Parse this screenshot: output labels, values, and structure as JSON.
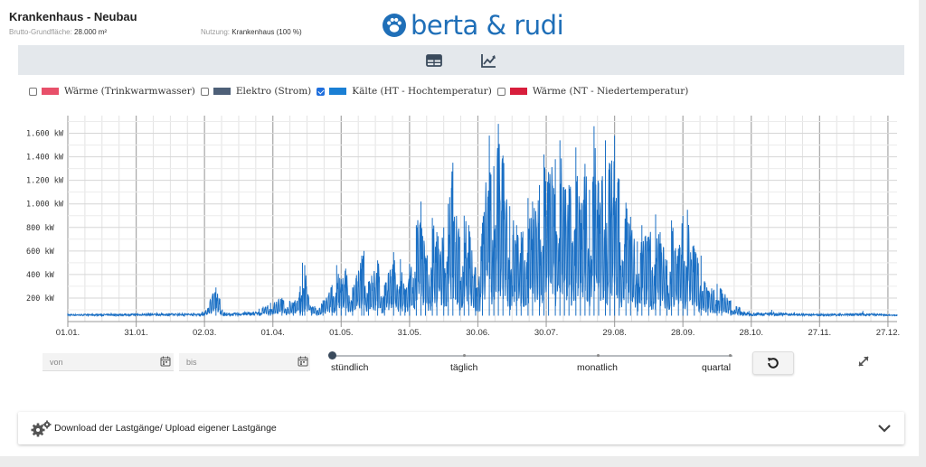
{
  "header": {
    "title": "Krankenhaus - Neubau",
    "area_label": "Brutto-Grundfläche:",
    "area_value": "28.000 m²",
    "usage_label": "Nutzung:",
    "usage_value": "Krankenhaus (100 %)",
    "logo_text": "berta & rudi",
    "logo_icon": "paw-icon"
  },
  "toolbar": {
    "buttons": [
      {
        "name": "table-view",
        "icon": "table-icon"
      },
      {
        "name": "chart-view",
        "icon": "line-chart-icon"
      }
    ]
  },
  "legend": [
    {
      "label": "Wärme (Trinkwarmwasser)",
      "color": "#e8506a",
      "checked": false
    },
    {
      "label": "Elektro (Strom)",
      "color": "#4e6078",
      "checked": false
    },
    {
      "label": "Kälte (HT - Hochtemperatur)",
      "color": "#1a7fd4",
      "checked": true
    },
    {
      "label": "Wärme (NT - Niedertemperatur)",
      "color": "#d81e3c",
      "checked": false
    }
  ],
  "chart_data": {
    "type": "line",
    "series": [
      {
        "name": "Kälte (HT - Hochtemperatur)",
        "color": "#1a6fc4"
      }
    ],
    "y_ticks": [
      {
        "value": 200,
        "label": "200 kW"
      },
      {
        "value": 400,
        "label": "400 kW"
      },
      {
        "value": 600,
        "label": "600 kW"
      },
      {
        "value": 800,
        "label": "800 kW"
      },
      {
        "value": 1000,
        "label": "1.000 kW"
      },
      {
        "value": 1200,
        "label": "1.200 kW"
      },
      {
        "value": 1400,
        "label": "1.400 kW"
      },
      {
        "value": 1600,
        "label": "1.600 kW"
      }
    ],
    "ylim": [
      0,
      1750
    ],
    "x_unit": "day_of_year",
    "xlim": [
      1,
      365
    ],
    "x_ticks": [
      {
        "day": 1,
        "label": "01.01."
      },
      {
        "day": 31,
        "label": "31.01."
      },
      {
        "day": 61,
        "label": "02.03."
      },
      {
        "day": 91,
        "label": "01.04."
      },
      {
        "day": 121,
        "label": "01.05."
      },
      {
        "day": 151,
        "label": "31.05."
      },
      {
        "day": 181,
        "label": "30.06."
      },
      {
        "day": 211,
        "label": "30.07."
      },
      {
        "day": 241,
        "label": "29.08."
      },
      {
        "day": 271,
        "label": "28.09."
      },
      {
        "day": 301,
        "label": "28.10."
      },
      {
        "day": 331,
        "label": "27.11."
      },
      {
        "day": 361,
        "label": "27.12."
      }
    ],
    "baseline_kw": 50,
    "daily_peaks": [
      {
        "day": 1,
        "kw": 70
      },
      {
        "day": 20,
        "kw": 75
      },
      {
        "day": 40,
        "kw": 80
      },
      {
        "day": 60,
        "kw": 85
      },
      {
        "day": 66,
        "kw": 290
      },
      {
        "day": 70,
        "kw": 80
      },
      {
        "day": 85,
        "kw": 110
      },
      {
        "day": 90,
        "kw": 160
      },
      {
        "day": 95,
        "kw": 200
      },
      {
        "day": 100,
        "kw": 160
      },
      {
        "day": 103,
        "kw": 300
      },
      {
        "day": 104,
        "kw": 500
      },
      {
        "day": 105,
        "kw": 480
      },
      {
        "day": 108,
        "kw": 120
      },
      {
        "day": 113,
        "kw": 180
      },
      {
        "day": 117,
        "kw": 310
      },
      {
        "day": 119,
        "kw": 480
      },
      {
        "day": 121,
        "kw": 360
      },
      {
        "day": 123,
        "kw": 450
      },
      {
        "day": 126,
        "kw": 290
      },
      {
        "day": 130,
        "kw": 560
      },
      {
        "day": 131,
        "kw": 600
      },
      {
        "day": 133,
        "kw": 340
      },
      {
        "day": 137,
        "kw": 520
      },
      {
        "day": 140,
        "kw": 310
      },
      {
        "day": 144,
        "kw": 590
      },
      {
        "day": 147,
        "kw": 530
      },
      {
        "day": 149,
        "kw": 280
      },
      {
        "day": 151,
        "kw": 490
      },
      {
        "day": 154,
        "kw": 820
      },
      {
        "day": 156,
        "kw": 1020
      },
      {
        "day": 158,
        "kw": 540
      },
      {
        "day": 161,
        "kw": 880
      },
      {
        "day": 163,
        "kw": 760
      },
      {
        "day": 166,
        "kw": 800
      },
      {
        "day": 168,
        "kw": 1000
      },
      {
        "day": 170,
        "kw": 1350
      },
      {
        "day": 173,
        "kw": 720
      },
      {
        "day": 175,
        "kw": 900
      },
      {
        "day": 177,
        "kw": 820
      },
      {
        "day": 180,
        "kw": 460
      },
      {
        "day": 183,
        "kw": 840
      },
      {
        "day": 186,
        "kw": 1580
      },
      {
        "day": 188,
        "kw": 1320
      },
      {
        "day": 190,
        "kw": 1680
      },
      {
        "day": 192,
        "kw": 1410
      },
      {
        "day": 195,
        "kw": 980
      },
      {
        "day": 198,
        "kw": 820
      },
      {
        "day": 200,
        "kw": 760
      },
      {
        "day": 203,
        "kw": 1050
      },
      {
        "day": 205,
        "kw": 1020
      },
      {
        "day": 208,
        "kw": 1160
      },
      {
        "day": 210,
        "kw": 1420
      },
      {
        "day": 212,
        "kw": 1270
      },
      {
        "day": 215,
        "kw": 1380
      },
      {
        "day": 217,
        "kw": 1540
      },
      {
        "day": 219,
        "kw": 1120
      },
      {
        "day": 221,
        "kw": 1160
      },
      {
        "day": 224,
        "kw": 1480
      },
      {
        "day": 226,
        "kw": 950
      },
      {
        "day": 228,
        "kw": 1340
      },
      {
        "day": 230,
        "kw": 1120
      },
      {
        "day": 232,
        "kw": 1660
      },
      {
        "day": 234,
        "kw": 1180
      },
      {
        "day": 237,
        "kw": 1540
      },
      {
        "day": 239,
        "kw": 1340
      },
      {
        "day": 241,
        "kw": 1580
      },
      {
        "day": 243,
        "kw": 1210
      },
      {
        "day": 246,
        "kw": 1010
      },
      {
        "day": 248,
        "kw": 890
      },
      {
        "day": 251,
        "kw": 680
      },
      {
        "day": 253,
        "kw": 820
      },
      {
        "day": 256,
        "kw": 720
      },
      {
        "day": 259,
        "kw": 910
      },
      {
        "day": 261,
        "kw": 760
      },
      {
        "day": 264,
        "kw": 520
      },
      {
        "day": 266,
        "kw": 860
      },
      {
        "day": 269,
        "kw": 620
      },
      {
        "day": 271,
        "kw": 900
      },
      {
        "day": 273,
        "kw": 950
      },
      {
        "day": 276,
        "kw": 620
      },
      {
        "day": 279,
        "kw": 560
      },
      {
        "day": 282,
        "kw": 260
      },
      {
        "day": 286,
        "kw": 320
      },
      {
        "day": 288,
        "kw": 270
      },
      {
        "day": 292,
        "kw": 180
      },
      {
        "day": 296,
        "kw": 120
      },
      {
        "day": 300,
        "kw": 90
      },
      {
        "day": 310,
        "kw": 100
      },
      {
        "day": 320,
        "kw": 80
      },
      {
        "day": 330,
        "kw": 70
      },
      {
        "day": 340,
        "kw": 75
      },
      {
        "day": 350,
        "kw": 90
      },
      {
        "day": 358,
        "kw": 70
      },
      {
        "day": 365,
        "kw": 60
      }
    ]
  },
  "controls": {
    "from_placeholder": "von",
    "to_placeholder": "bis",
    "resolution_options": [
      "stündlich",
      "täglich",
      "monatlich",
      "quartal"
    ],
    "resolution_selected": "stündlich"
  },
  "download_panel": {
    "label": "Download der Lastgänge/ Upload eigener Lastgänge"
  }
}
